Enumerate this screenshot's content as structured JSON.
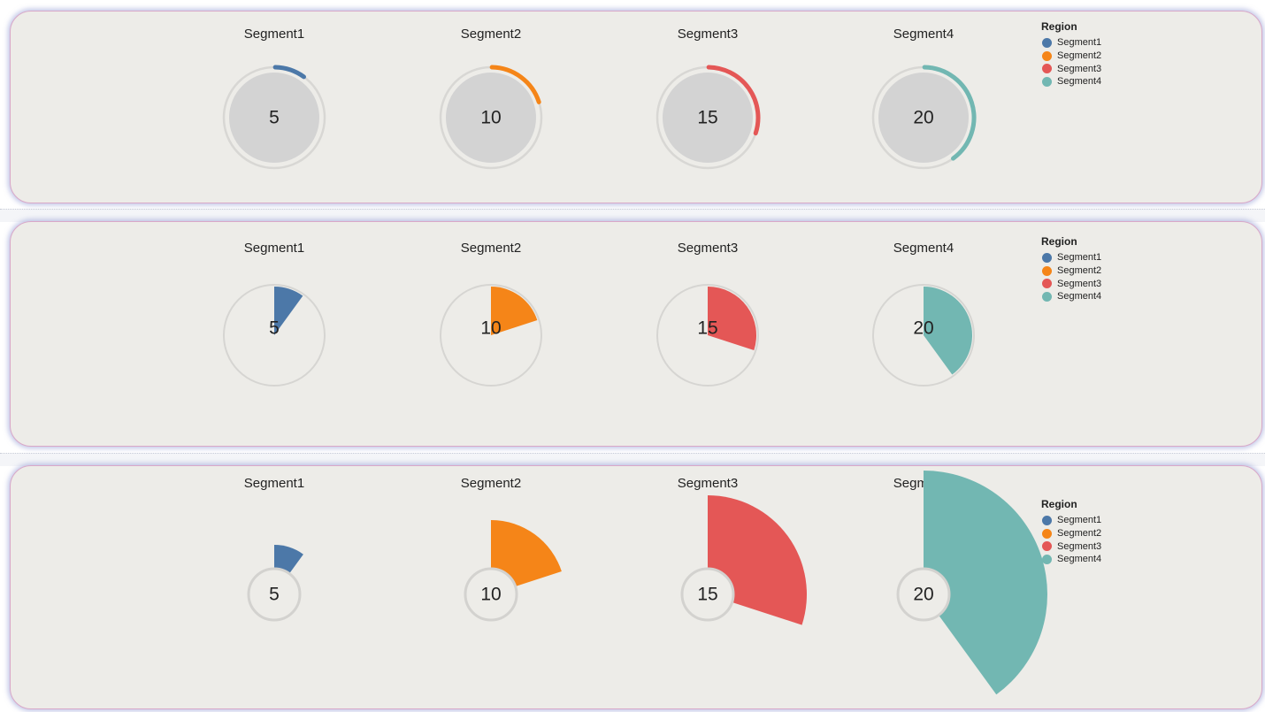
{
  "colors": {
    "Segment1": "#4c78a8",
    "Segment2": "#f58518",
    "Segment3": "#e45756",
    "Segment4": "#72b7b2"
  },
  "chart_data": [
    {
      "type": "radial-arc-gauge",
      "categories": [
        "Segment1",
        "Segment2",
        "Segment3",
        "Segment4"
      ],
      "values": [
        5,
        10,
        15,
        20
      ],
      "max": 50,
      "legend": {
        "title": "Region",
        "entries": [
          "Segment1",
          "Segment2",
          "Segment3",
          "Segment4"
        ],
        "placement": "top-right"
      }
    },
    {
      "type": "pie-gauge",
      "categories": [
        "Segment1",
        "Segment2",
        "Segment3",
        "Segment4"
      ],
      "values": [
        5,
        10,
        15,
        20
      ],
      "max": 50,
      "legend": {
        "title": "Region",
        "entries": [
          "Segment1",
          "Segment2",
          "Segment3",
          "Segment4"
        ],
        "placement": "top-right"
      }
    },
    {
      "type": "radial-sector",
      "categories": [
        "Segment1",
        "Segment2",
        "Segment3",
        "Segment4"
      ],
      "values": [
        5,
        10,
        15,
        20
      ],
      "max": 50,
      "legend": {
        "title": "Region",
        "entries": [
          "Segment1",
          "Segment2",
          "Segment3",
          "Segment4"
        ],
        "placement": "top-right"
      }
    }
  ]
}
